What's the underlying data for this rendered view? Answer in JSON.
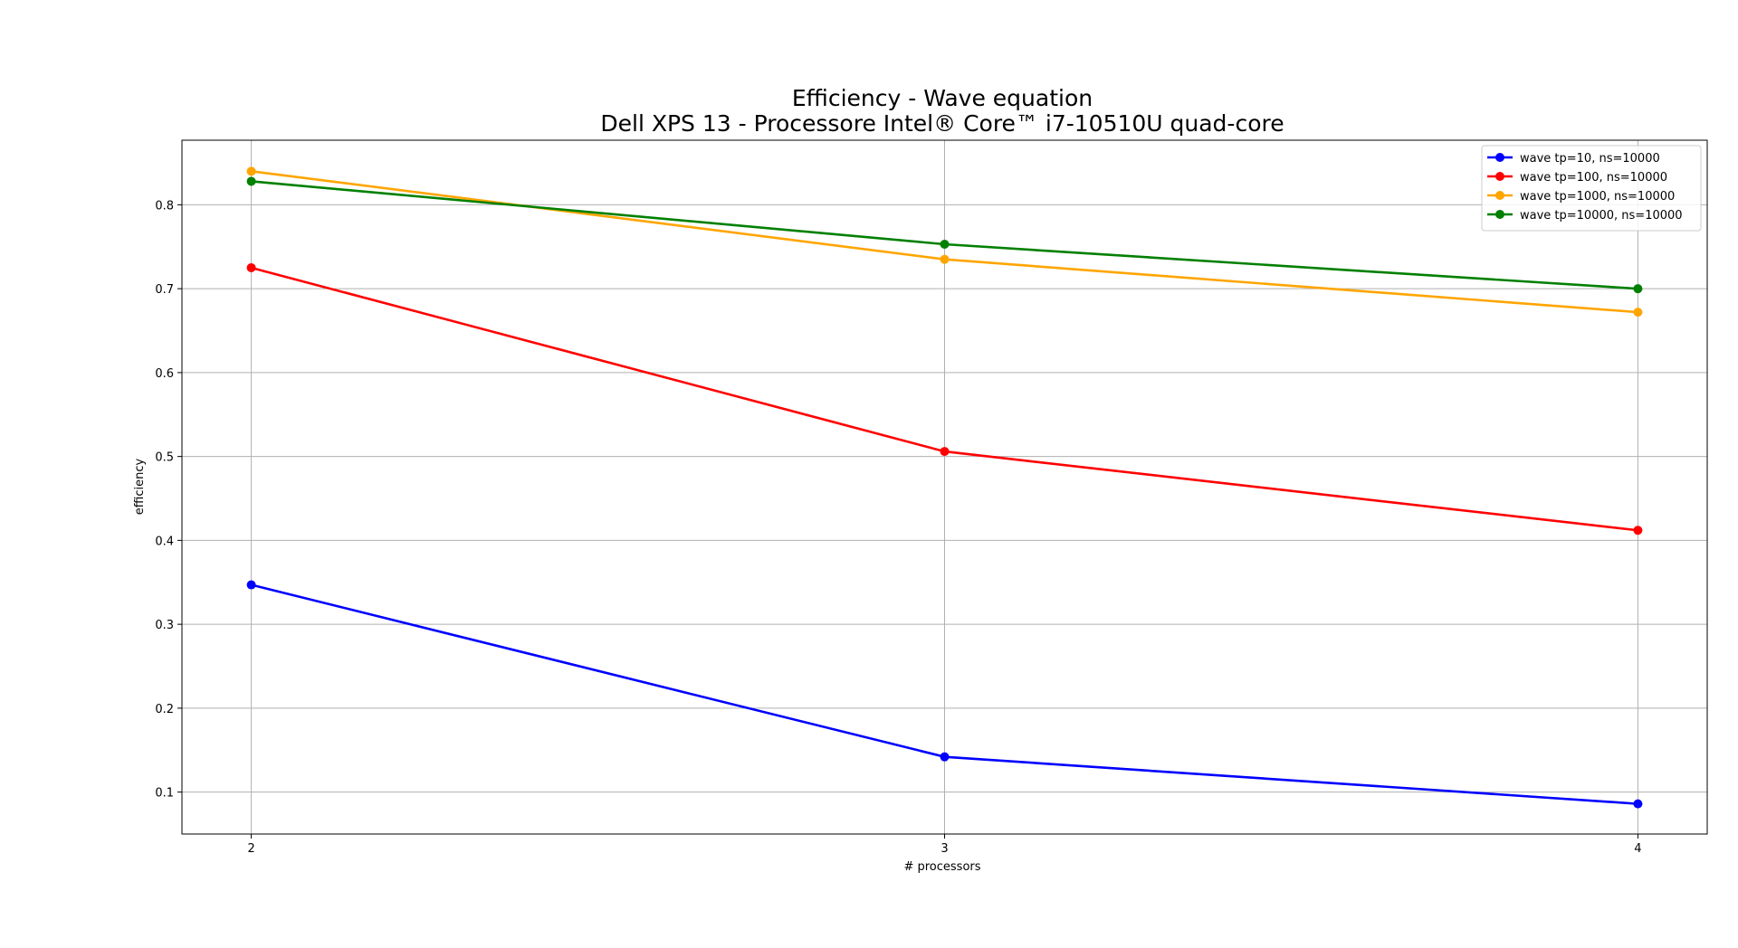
{
  "chart_data": {
    "type": "line",
    "title": "Efficiency -  Wave equation",
    "subtitle": "Dell XPS 13 - Processore Intel® Core™ i7-10510U quad-core",
    "xlabel": "# processors",
    "ylabel": "efficiency",
    "x": [
      2,
      3,
      4
    ],
    "x_ticks": [
      "2",
      "3",
      "4"
    ],
    "y_ticks": [
      "0.1",
      "0.2",
      "0.3",
      "0.4",
      "0.5",
      "0.6",
      "0.7",
      "0.8"
    ],
    "xlim": [
      1.9,
      4.1
    ],
    "ylim": [
      0.05,
      0.877
    ],
    "grid": true,
    "legend_position": "top-right",
    "series": [
      {
        "name": "wave tp=10, ns=10000",
        "color": "#0000ff",
        "values": [
          0.347,
          0.142,
          0.086
        ]
      },
      {
        "name": "wave tp=100, ns=10000",
        "color": "#ff0000",
        "values": [
          0.725,
          0.506,
          0.412
        ]
      },
      {
        "name": "wave tp=1000, ns=10000",
        "color": "#ffa500",
        "values": [
          0.84,
          0.735,
          0.672
        ]
      },
      {
        "name": "wave tp=10000, ns=10000",
        "color": "#008000",
        "values": [
          0.828,
          0.753,
          0.7
        ]
      }
    ]
  }
}
